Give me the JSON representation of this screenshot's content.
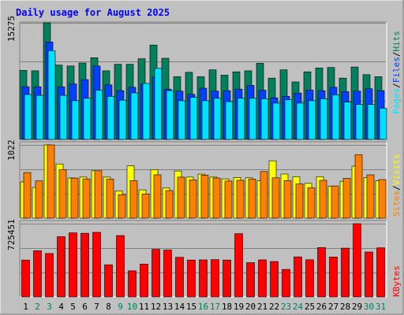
{
  "title": "Daily usage for August 2025",
  "colors": {
    "hits": "#00805c",
    "files": "#0040ff",
    "pages": "#00e0ff",
    "visits": "#ffff00",
    "sites": "#ff8000",
    "kbytes": "#ff0000",
    "weekend_label": "#00805c",
    "weekday_label": "#000000",
    "title": "#0000ff",
    "panel_bg": "#c0c0c0"
  },
  "chart_data": [
    {
      "type": "bar",
      "panel": "top",
      "y_tick_label": "15275",
      "ylim": [
        0,
        15275
      ],
      "categories": [
        "1",
        "2",
        "3",
        "4",
        "5",
        "6",
        "7",
        "8",
        "9",
        "10",
        "11",
        "12",
        "13",
        "14",
        "15",
        "16",
        "17",
        "18",
        "19",
        "20",
        "21",
        "22",
        "23",
        "24",
        "25",
        "26",
        "27",
        "28",
        "29",
        "30",
        "31"
      ],
      "weekend_days": [
        "2",
        "3",
        "9",
        "10",
        "16",
        "17",
        "23",
        "24",
        "30",
        "31"
      ],
      "series": [
        {
          "name": "Hits",
          "values": [
            9040,
            8990,
            15275,
            9740,
            9620,
            10010,
            10700,
            8990,
            9850,
            9850,
            10570,
            12360,
            10630,
            8220,
            8790,
            8220,
            9110,
            8420,
            8860,
            8990,
            9980,
            8030,
            9110,
            7530,
            8860,
            9360,
            9420,
            8030,
            9480,
            8480,
            8220
          ]
        },
        {
          "name": "Files",
          "values": [
            6900,
            6890,
            12770,
            6890,
            7270,
            7830,
            9620,
            7140,
            6390,
            6830,
            7200,
            8150,
            6580,
            6330,
            5900,
            6710,
            6330,
            6390,
            6580,
            7080,
            6450,
            5450,
            5640,
            6070,
            6460,
            6390,
            6830,
            6260,
            6330,
            6640,
            6390
          ]
        },
        {
          "name": "Pages",
          "values": [
            5880,
            5770,
            11620,
            5770,
            5070,
            5390,
            6440,
            5640,
            5140,
            6100,
            7330,
            9310,
            6390,
            5070,
            5510,
            5070,
            5390,
            4950,
            5390,
            5390,
            5330,
            4760,
            5190,
            4760,
            5070,
            5330,
            5830,
            4890,
            4570,
            4570,
            4080
          ]
        }
      ]
    },
    {
      "type": "bar",
      "panel": "middle",
      "y_tick_label": "1022",
      "ylim": [
        0,
        1022
      ],
      "series": [
        {
          "name": "Visits",
          "values": [
            505,
            428,
            1022,
            756,
            560,
            573,
            662,
            573,
            380,
            731,
            395,
            677,
            420,
            658,
            573,
            614,
            573,
            548,
            568,
            563,
            522,
            800,
            615,
            578,
            486,
            579,
            445,
            514,
            725,
            568,
            522
          ]
        },
        {
          "name": "Sites",
          "values": [
            636,
            521,
            1022,
            676,
            559,
            547,
            662,
            546,
            329,
            523,
            337,
            604,
            385,
            573,
            534,
            600,
            560,
            518,
            528,
            546,
            651,
            563,
            524,
            478,
            423,
            528,
            449,
            555,
            885,
            604,
            539
          ]
        }
      ]
    },
    {
      "type": "bar",
      "panel": "bottom",
      "y_tick_label": "725451",
      "ylim": [
        0,
        725451
      ],
      "series": [
        {
          "name": "KBytes",
          "values": [
            365000,
            457000,
            430000,
            597000,
            634000,
            630000,
            640000,
            318000,
            608000,
            258000,
            325000,
            471000,
            464000,
            392000,
            365000,
            367000,
            369000,
            365000,
            626000,
            339000,
            367000,
            350000,
            272000,
            396000,
            368000,
            488000,
            395000,
            483000,
            725451,
            445000,
            486000
          ]
        }
      ]
    }
  ],
  "legends": {
    "top": [
      {
        "label": "Pages",
        "color_key": "pages"
      },
      {
        "label": "/",
        "color_key": "weekday_label"
      },
      {
        "label": "Files",
        "color_key": "files"
      },
      {
        "label": "/",
        "color_key": "weekday_label"
      },
      {
        "label": "Hits",
        "color_key": "hits"
      }
    ],
    "middle": [
      {
        "label": "Sites",
        "color_key": "sites"
      },
      {
        "label": "/",
        "color_key": "weekday_label"
      },
      {
        "label": "Visits",
        "color_key": "visits"
      }
    ],
    "bottom": [
      {
        "label": "KBytes",
        "color_key": "kbytes"
      }
    ]
  }
}
